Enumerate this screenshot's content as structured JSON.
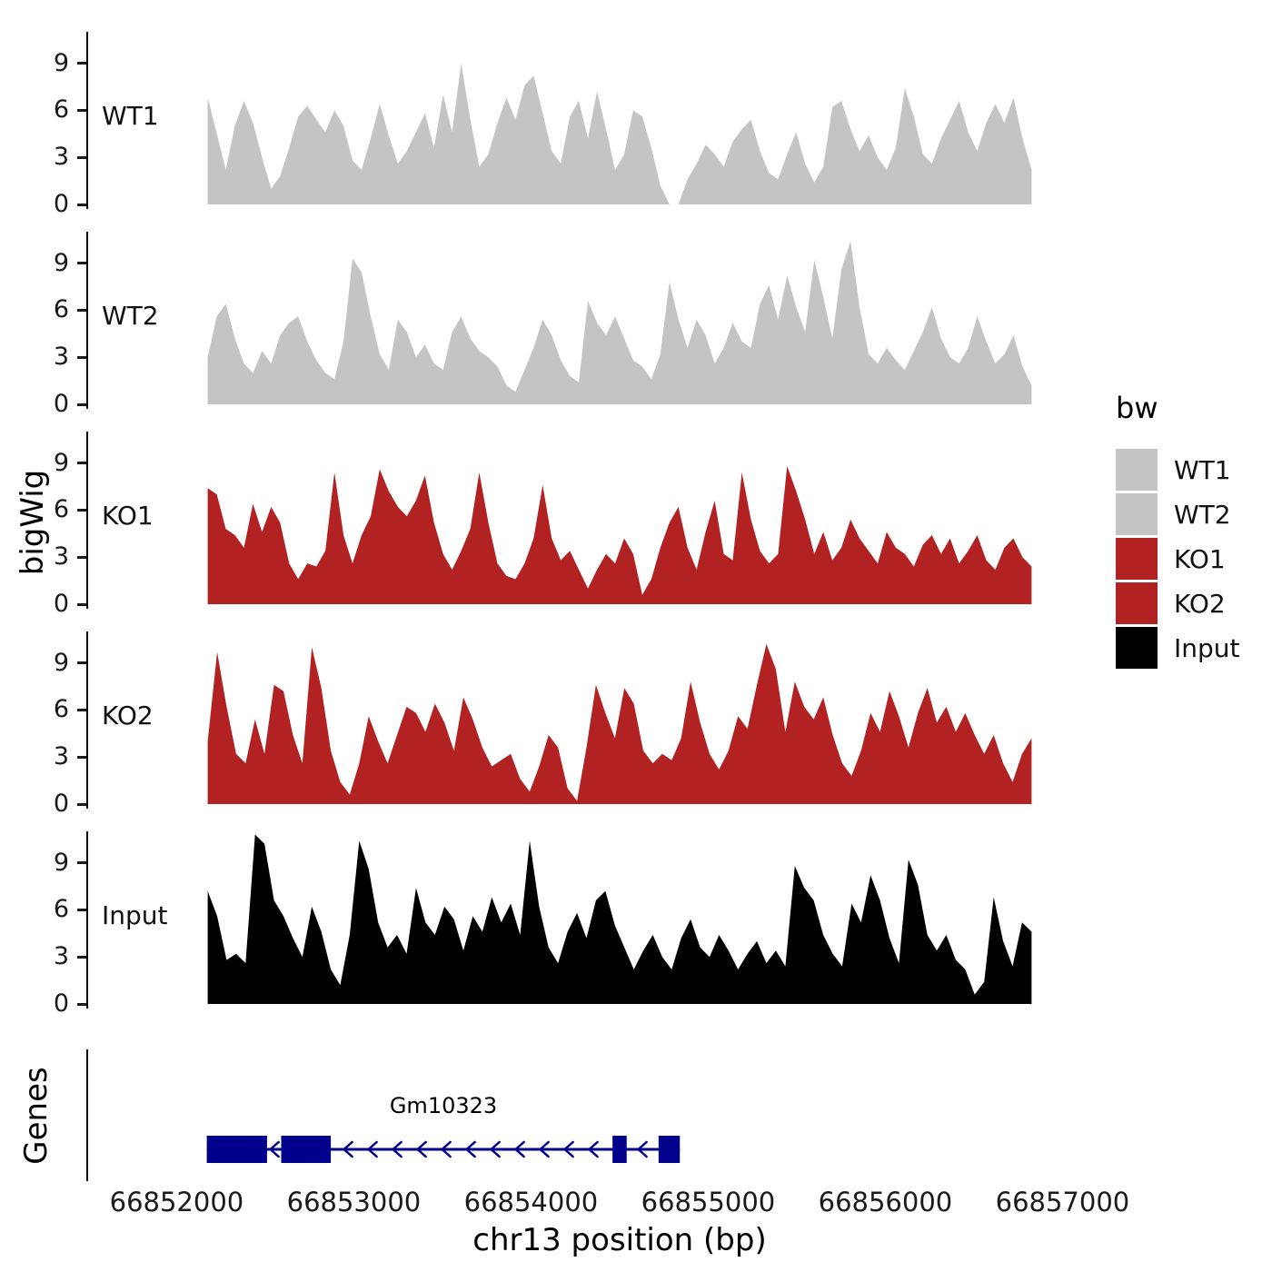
{
  "genes_panel_label": "Genes",
  "legend": {
    "title": "bw",
    "entries": [
      {
        "label": "WT1",
        "color": "#c4c4c4"
      },
      {
        "label": "WT2",
        "color": "#c4c4c4"
      },
      {
        "label": "KO1",
        "color": "#b22222"
      },
      {
        "label": "KO2",
        "color": "#b22222"
      },
      {
        "label": "Input",
        "color": "#000000"
      }
    ]
  },
  "chart_data": {
    "type": "area",
    "title": "",
    "xlabel": "chr13 position (bp)",
    "ylabel": "bigWig",
    "x_start": 66852170,
    "x_end": 66856820,
    "x_ticks": [
      66852000,
      66853000,
      66854000,
      66855000,
      66856000,
      66857000
    ],
    "y_ticks": [
      0,
      3,
      6,
      9
    ],
    "ylim": [
      0,
      11
    ],
    "grid": false,
    "legend_position": "right",
    "series": [
      {
        "name": "WT1",
        "color": "#c4c4c4",
        "values": [
          6.8,
          4.5,
          2.2,
          5.0,
          6.6,
          5.2,
          3.0,
          1.0,
          1.8,
          3.6,
          5.6,
          6.3,
          5.4,
          4.6,
          6.0,
          5.0,
          2.8,
          2.2,
          4.2,
          6.4,
          4.4,
          2.6,
          3.4,
          4.6,
          5.8,
          3.6,
          7.0,
          4.6,
          9.0,
          5.4,
          2.4,
          3.2,
          5.2,
          6.8,
          5.4,
          7.6,
          8.2,
          5.8,
          3.4,
          2.6,
          5.6,
          6.6,
          4.2,
          7.2,
          4.8,
          2.2,
          3.2,
          6.0,
          5.6,
          3.6,
          1.2,
          0.0,
          0.0,
          1.6,
          2.6,
          3.8,
          3.2,
          2.4,
          4.0,
          4.8,
          5.4,
          3.4,
          2.0,
          1.6,
          3.2,
          4.6,
          2.6,
          1.4,
          2.4,
          6.2,
          6.6,
          4.8,
          3.4,
          4.4,
          3.0,
          2.2,
          3.6,
          7.4,
          5.6,
          3.2,
          2.6,
          4.2,
          5.4,
          6.6,
          4.6,
          3.4,
          5.2,
          6.4,
          5.2,
          6.8,
          4.2,
          2.2
        ]
      },
      {
        "name": "WT2",
        "color": "#c4c4c4",
        "values": [
          3.0,
          5.6,
          6.4,
          4.2,
          2.6,
          2.0,
          3.4,
          2.6,
          4.4,
          5.2,
          5.6,
          4.0,
          2.8,
          2.0,
          1.6,
          4.0,
          9.3,
          8.4,
          5.6,
          3.2,
          2.2,
          5.4,
          4.6,
          3.0,
          3.8,
          2.6,
          2.2,
          4.6,
          5.6,
          4.2,
          3.4,
          3.0,
          2.4,
          1.2,
          0.8,
          2.2,
          3.6,
          5.4,
          4.4,
          2.8,
          1.8,
          1.4,
          6.6,
          5.2,
          4.4,
          5.6,
          4.2,
          2.8,
          2.4,
          1.6,
          3.2,
          7.8,
          5.4,
          3.6,
          5.4,
          4.4,
          2.6,
          3.6,
          5.2,
          4.0,
          3.6,
          6.4,
          7.6,
          5.4,
          8.2,
          6.2,
          4.6,
          9.2,
          6.8,
          4.2,
          8.6,
          10.4,
          6.2,
          3.2,
          2.6,
          3.6,
          2.8,
          2.2,
          3.4,
          4.6,
          6.2,
          4.2,
          3.0,
          2.6,
          3.6,
          5.6,
          4.0,
          2.6,
          3.2,
          4.4,
          2.4,
          1.2
        ]
      },
      {
        "name": "KO1",
        "color": "#b22222",
        "values": [
          7.4,
          7.0,
          4.8,
          4.4,
          3.6,
          6.4,
          4.6,
          6.2,
          5.2,
          2.6,
          1.6,
          2.6,
          2.4,
          3.4,
          8.4,
          4.4,
          2.6,
          4.4,
          5.6,
          8.6,
          7.2,
          6.2,
          5.6,
          6.6,
          8.2,
          5.2,
          3.2,
          2.2,
          3.4,
          4.8,
          8.4,
          5.2,
          2.6,
          1.8,
          1.6,
          2.6,
          4.2,
          7.6,
          4.2,
          2.8,
          3.4,
          2.2,
          1.0,
          2.2,
          3.2,
          2.6,
          4.2,
          3.2,
          0.6,
          1.6,
          3.6,
          5.2,
          6.2,
          3.6,
          2.2,
          4.6,
          6.6,
          3.2,
          2.8,
          8.4,
          5.4,
          3.4,
          2.6,
          3.2,
          8.8,
          7.2,
          5.4,
          3.2,
          4.6,
          2.8,
          3.6,
          5.4,
          4.2,
          3.4,
          2.6,
          4.6,
          3.6,
          3.2,
          2.4,
          3.8,
          4.4,
          3.2,
          4.2,
          2.6,
          3.4,
          4.4,
          2.8,
          2.2,
          3.6,
          4.2,
          3.0,
          2.4
        ]
      },
      {
        "name": "KO2",
        "color": "#b22222",
        "values": [
          4.0,
          9.7,
          6.2,
          3.2,
          2.6,
          5.4,
          3.2,
          7.6,
          7.2,
          4.4,
          2.6,
          10.0,
          7.4,
          3.4,
          1.4,
          0.6,
          2.6,
          5.6,
          4.0,
          2.6,
          4.4,
          6.2,
          5.8,
          4.6,
          6.4,
          5.2,
          3.4,
          6.8,
          5.4,
          3.6,
          2.4,
          2.8,
          3.2,
          1.6,
          0.8,
          2.4,
          4.4,
          3.6,
          1.0,
          0.2,
          3.6,
          7.6,
          5.8,
          4.2,
          7.4,
          6.4,
          3.4,
          2.6,
          3.2,
          2.8,
          4.2,
          7.8,
          5.2,
          3.2,
          2.2,
          3.4,
          5.6,
          4.8,
          7.6,
          10.2,
          8.6,
          4.6,
          7.8,
          6.2,
          5.4,
          6.8,
          4.4,
          2.6,
          1.8,
          3.4,
          5.8,
          4.6,
          7.2,
          5.6,
          3.6,
          5.8,
          7.4,
          5.2,
          6.2,
          4.6,
          5.8,
          4.4,
          3.2,
          4.4,
          2.6,
          1.4,
          3.2,
          4.2
        ]
      },
      {
        "name": "Input",
        "color": "#000000",
        "values": [
          7.2,
          5.6,
          2.8,
          3.2,
          2.6,
          10.8,
          10.2,
          6.6,
          5.6,
          4.2,
          3.0,
          6.2,
          4.6,
          2.2,
          1.2,
          4.4,
          10.4,
          8.6,
          5.2,
          3.6,
          4.4,
          3.2,
          7.4,
          5.2,
          4.4,
          6.2,
          5.4,
          3.4,
          5.6,
          4.6,
          6.8,
          5.2,
          6.4,
          4.4,
          10.4,
          6.2,
          3.6,
          2.6,
          4.6,
          5.8,
          4.2,
          6.6,
          7.2,
          5.0,
          3.6,
          2.2,
          3.4,
          4.4,
          3.0,
          2.2,
          4.2,
          5.4,
          3.6,
          3.0,
          4.4,
          3.4,
          2.2,
          3.2,
          4.0,
          2.6,
          3.4,
          2.4,
          8.8,
          7.4,
          6.6,
          4.4,
          3.2,
          2.4,
          6.4,
          5.2,
          8.2,
          6.6,
          4.2,
          2.6,
          9.2,
          7.6,
          4.4,
          3.4,
          4.4,
          2.8,
          2.2,
          0.6,
          1.4,
          6.8,
          4.0,
          2.4,
          5.2,
          4.6
        ]
      }
    ],
    "gene_track": {
      "label": "Genes",
      "gene": {
        "name": "Gm10323",
        "chrom": "chr13",
        "start": 66852170,
        "end": 66854840,
        "strand": "-",
        "color": "#00008b",
        "exons": [
          [
            66852170,
            66852510
          ],
          [
            66852590,
            66852870
          ],
          [
            66854460,
            66854540
          ],
          [
            66854720,
            66854840
          ]
        ]
      }
    }
  }
}
